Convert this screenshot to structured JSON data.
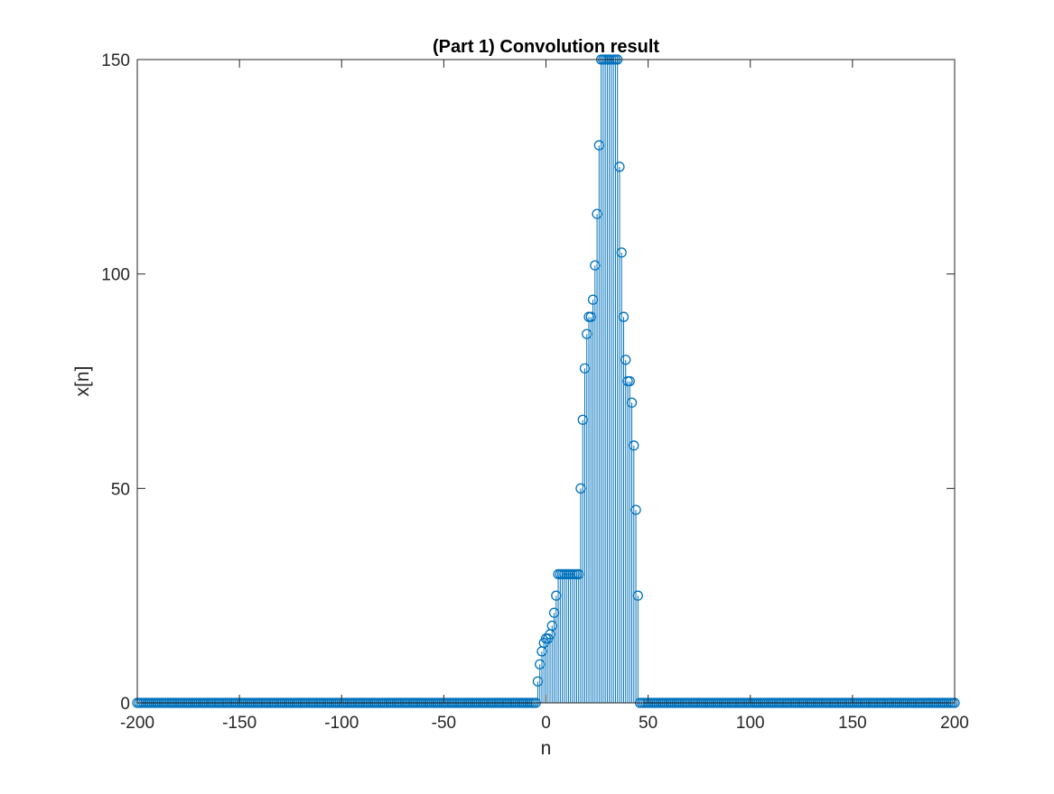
{
  "chart_data": {
    "type": "stem",
    "title": "(Part 1) Convolution result",
    "xlabel": "n",
    "ylabel": "x[n]",
    "xlim": [
      -200,
      200
    ],
    "ylim": [
      0,
      150
    ],
    "xticks": [
      -200,
      -150,
      -100,
      -50,
      0,
      50,
      100,
      150,
      200
    ],
    "yticks": [
      0,
      50,
      100,
      150
    ],
    "grid": false,
    "color": "#0072BD",
    "series": [
      {
        "zero_ranges": [
          [
            -200,
            -6
          ],
          [
            46,
            200
          ]
        ],
        "x": [
          -5,
          -4,
          -3,
          -2,
          -1,
          0,
          1,
          2,
          3,
          4,
          5,
          6,
          7,
          8,
          9,
          10,
          11,
          12,
          13,
          14,
          15,
          16,
          17,
          18,
          19,
          20,
          21,
          22,
          23,
          24,
          25,
          26,
          27,
          28,
          29,
          30,
          31,
          32,
          33,
          34,
          35,
          36,
          37,
          38,
          39,
          40,
          41,
          42,
          43,
          44,
          45
        ],
        "values": [
          0,
          5,
          9,
          12,
          14,
          15,
          15,
          16,
          18,
          21,
          25,
          30,
          30,
          30,
          30,
          30,
          30,
          30,
          30,
          30,
          30,
          30,
          50,
          66,
          78,
          86,
          90,
          90,
          94,
          102,
          114,
          130,
          150,
          150,
          150,
          150,
          150,
          150,
          150,
          150,
          150,
          125,
          105,
          90,
          80,
          75,
          75,
          70,
          60,
          45,
          25
        ]
      }
    ]
  }
}
